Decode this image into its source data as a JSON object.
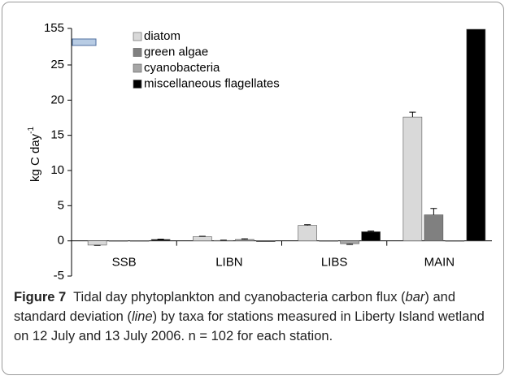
{
  "chart_data": {
    "type": "bar",
    "ylabel": "kg C day",
    "ylabel_sup": "-1",
    "categories": [
      "SSB",
      "LIBN",
      "LIBS",
      "MAIN"
    ],
    "series": [
      {
        "name": "diatom",
        "color": "#d9d9d9",
        "values": [
          -0.6,
          0.6,
          2.2,
          17.6
        ],
        "errors": [
          0.05,
          0.05,
          0.1,
          0.7
        ]
      },
      {
        "name": "green algae",
        "color": "#808080",
        "values": [
          0,
          0.05,
          0,
          3.7
        ],
        "errors": [
          0,
          0.05,
          0,
          0.9
        ]
      },
      {
        "name": "cyanobacteria",
        "color": "#a6a6a6",
        "values": [
          0,
          0.2,
          -0.4,
          0
        ],
        "errors": [
          0,
          0.1,
          0.1,
          0
        ]
      },
      {
        "name": "miscellaneous flagellates",
        "color": "#000000",
        "values": [
          0.2,
          -0.1,
          1.3,
          152
        ],
        "errors": [
          0.05,
          0,
          0.1,
          0
        ]
      }
    ],
    "ylim": [
      -5,
      155
    ],
    "yticks": [
      -5,
      0,
      5,
      10,
      15,
      20,
      25,
      155
    ],
    "grid": false,
    "legend": "top-left"
  },
  "caption": {
    "label": "Figure 7",
    "parts": [
      "Tidal day phytoplankton and cyanobacteria carbon flux (",
      "bar",
      ") and standard deviation (",
      "line",
      ") by taxa for stations measured in Liberty Island wetland on 12 July and 13 July 2006. n = 102 for each station."
    ]
  }
}
